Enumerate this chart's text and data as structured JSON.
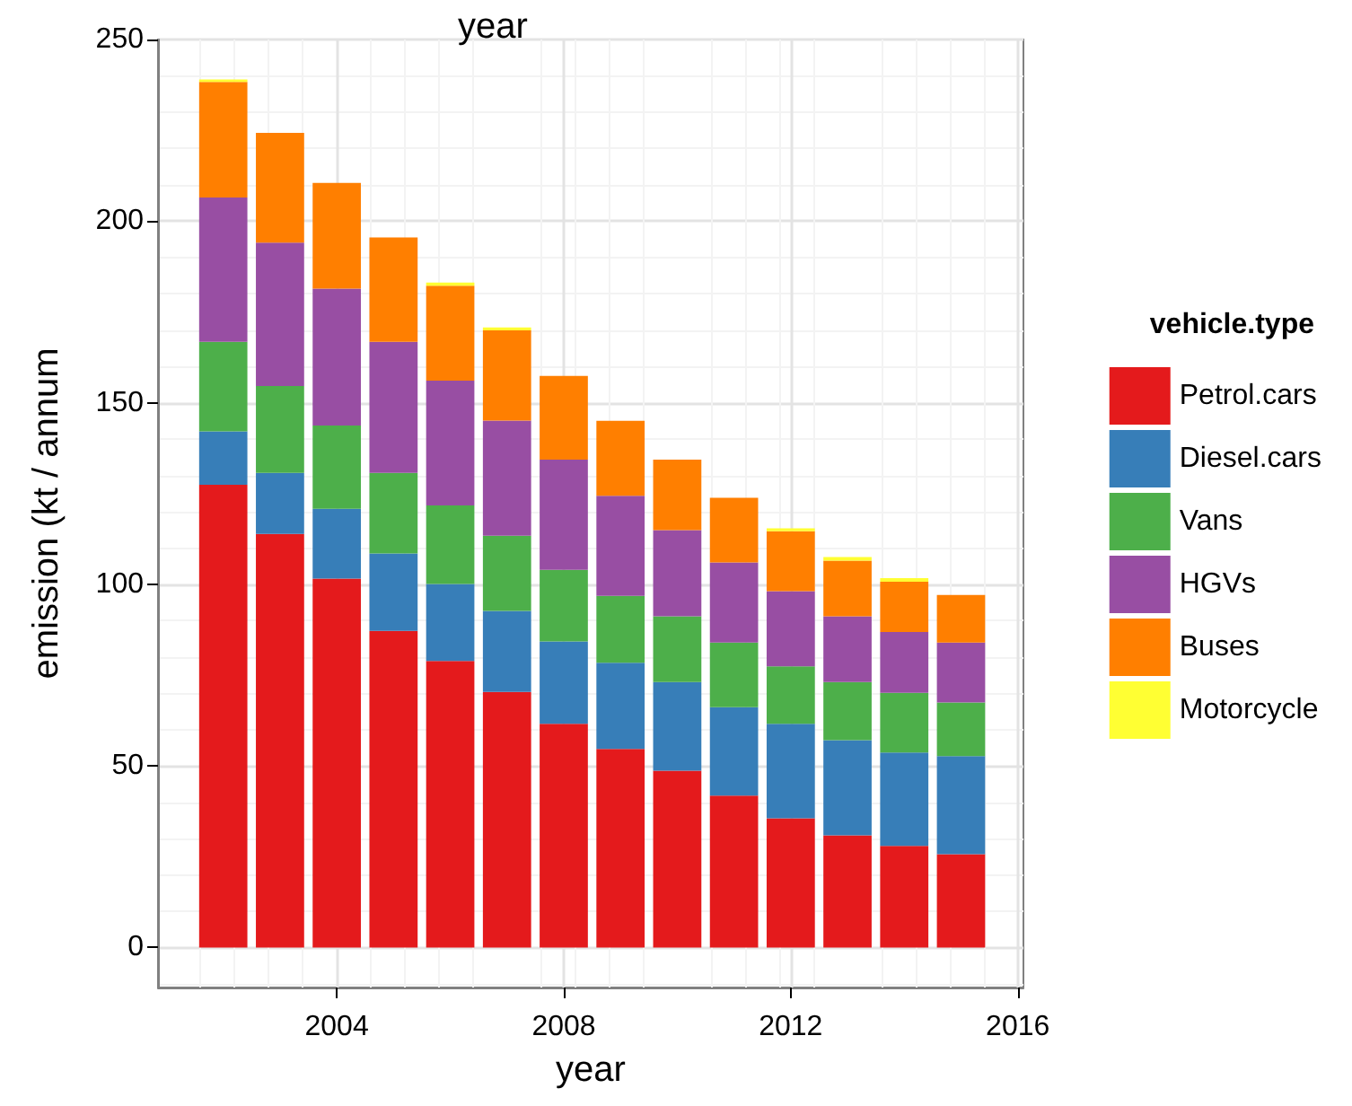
{
  "chart_data": {
    "type": "bar",
    "stacked": true,
    "title": "year",
    "xlabel": "year",
    "ylabel": "emission (kt / annum",
    "legend_title": "vehicle.type",
    "x": [
      2002,
      2003,
      2004,
      2005,
      2006,
      2007,
      2008,
      2009,
      2010,
      2011,
      2012,
      2013,
      2014,
      2015
    ],
    "series": [
      {
        "name": "Petrol.cars",
        "color": "#e41a1c",
        "values": [
          127.4,
          113.9,
          101.6,
          87.2,
          78.9,
          70.4,
          61.6,
          54.7,
          48.7,
          41.8,
          35.6,
          30.9,
          28.0,
          25.7
        ]
      },
      {
        "name": "Diesel.cars",
        "color": "#377eb8",
        "values": [
          14.7,
          16.8,
          19.2,
          21.3,
          21.2,
          22.3,
          22.7,
          23.7,
          24.4,
          24.4,
          26.0,
          26.2,
          25.7,
          27.0
        ]
      },
      {
        "name": "Vans",
        "color": "#4daf4a",
        "values": [
          24.7,
          23.9,
          22.9,
          22.2,
          21.6,
          20.7,
          19.7,
          18.4,
          18.1,
          17.8,
          15.8,
          16.0,
          16.4,
          14.8
        ]
      },
      {
        "name": "HGVs",
        "color": "#984ea3",
        "values": [
          39.7,
          39.5,
          37.7,
          36.1,
          34.4,
          31.7,
          30.3,
          27.6,
          23.7,
          22.0,
          20.7,
          18.1,
          16.8,
          16.5
        ]
      },
      {
        "name": "Buses",
        "color": "#ff7f00",
        "values": [
          31.8,
          30.2,
          29.1,
          28.7,
          26.1,
          24.8,
          23.1,
          20.6,
          19.4,
          17.8,
          16.5,
          15.3,
          13.8,
          13.1
        ]
      },
      {
        "name": "Motorcycle",
        "color": "#ffff33",
        "values": [
          0.7,
          0,
          0,
          0,
          0.9,
          0.8,
          0,
          0,
          0,
          0,
          0.8,
          1.0,
          1.0,
          0
        ]
      }
    ],
    "xlim": [
      2000.85,
      2016.1
    ],
    "xticks": [
      2004,
      2008,
      2012,
      2016
    ],
    "ylim": [
      -11,
      250
    ],
    "yticks": [
      0,
      50,
      100,
      150,
      200,
      250
    ],
    "grid": true,
    "legend": "right"
  }
}
